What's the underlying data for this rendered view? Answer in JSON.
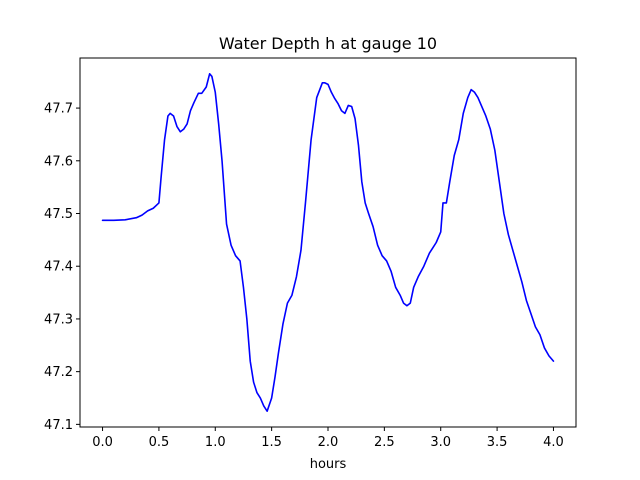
{
  "chart_data": {
    "type": "line",
    "title": "Water Depth h at gauge 10",
    "xlabel": "hours",
    "ylabel": "",
    "xlim": [
      -0.2,
      4.2
    ],
    "ylim": [
      47.095,
      47.795
    ],
    "xticks": [
      0.0,
      0.5,
      1.0,
      1.5,
      2.0,
      2.5,
      3.0,
      3.5,
      4.0
    ],
    "xtick_labels": [
      "0.0",
      "0.5",
      "1.0",
      "1.5",
      "2.0",
      "2.5",
      "3.0",
      "3.5",
      "4.0"
    ],
    "yticks": [
      47.1,
      47.2,
      47.3,
      47.4,
      47.5,
      47.6,
      47.7
    ],
    "ytick_labels": [
      "47.1",
      "47.2",
      "47.3",
      "47.4",
      "47.5",
      "47.6",
      "47.7"
    ],
    "grid": false,
    "line_color": "#0000ff",
    "series": [
      {
        "x": [
          0.0,
          0.1,
          0.2,
          0.3,
          0.35,
          0.4,
          0.45,
          0.5,
          0.52,
          0.55,
          0.58,
          0.6,
          0.63,
          0.66,
          0.69,
          0.72,
          0.75,
          0.78,
          0.81,
          0.85,
          0.88,
          0.92,
          0.95,
          0.97,
          1.0,
          1.03,
          1.06,
          1.1,
          1.14,
          1.18,
          1.22,
          1.25,
          1.28,
          1.31,
          1.34,
          1.37,
          1.4,
          1.43,
          1.46,
          1.5,
          1.53,
          1.56,
          1.6,
          1.64,
          1.68,
          1.72,
          1.76,
          1.8,
          1.85,
          1.9,
          1.95,
          1.97,
          2.0,
          2.03,
          2.06,
          2.09,
          2.12,
          2.15,
          2.18,
          2.21,
          2.24,
          2.27,
          2.3,
          2.33,
          2.36,
          2.4,
          2.44,
          2.48,
          2.52,
          2.56,
          2.6,
          2.64,
          2.67,
          2.7,
          2.73,
          2.76,
          2.8,
          2.85,
          2.9,
          2.93,
          2.96,
          3.0,
          3.02,
          3.05,
          3.08,
          3.12,
          3.16,
          3.2,
          3.24,
          3.27,
          3.3,
          3.33,
          3.36,
          3.4,
          3.44,
          3.48,
          3.52,
          3.56,
          3.6,
          3.64,
          3.68,
          3.72,
          3.76,
          3.8,
          3.84,
          3.88,
          3.92,
          3.96,
          4.0
        ],
        "y": [
          47.487,
          47.487,
          47.488,
          47.492,
          47.497,
          47.505,
          47.51,
          47.52,
          47.57,
          47.64,
          47.685,
          47.69,
          47.685,
          47.665,
          47.655,
          47.66,
          47.67,
          47.695,
          47.71,
          47.728,
          47.728,
          47.74,
          47.765,
          47.76,
          47.73,
          47.67,
          47.6,
          47.48,
          47.44,
          47.42,
          47.41,
          47.36,
          47.3,
          47.22,
          47.18,
          47.16,
          47.15,
          47.135,
          47.125,
          47.15,
          47.19,
          47.235,
          47.29,
          47.33,
          47.345,
          47.38,
          47.43,
          47.52,
          47.64,
          47.72,
          47.748,
          47.748,
          47.745,
          47.73,
          47.718,
          47.708,
          47.695,
          47.69,
          47.705,
          47.703,
          47.68,
          47.63,
          47.56,
          47.52,
          47.5,
          47.475,
          47.44,
          47.42,
          47.41,
          47.39,
          47.36,
          47.345,
          47.33,
          47.325,
          47.33,
          47.36,
          47.38,
          47.4,
          47.425,
          47.435,
          47.445,
          47.465,
          47.52,
          47.52,
          47.56,
          47.61,
          47.64,
          47.69,
          47.72,
          47.735,
          47.73,
          47.72,
          47.705,
          47.685,
          47.66,
          47.62,
          47.56,
          47.5,
          47.46,
          47.43,
          47.4,
          47.37,
          47.335,
          47.31,
          47.285,
          47.27,
          47.245,
          47.23,
          47.22
        ]
      }
    ]
  }
}
